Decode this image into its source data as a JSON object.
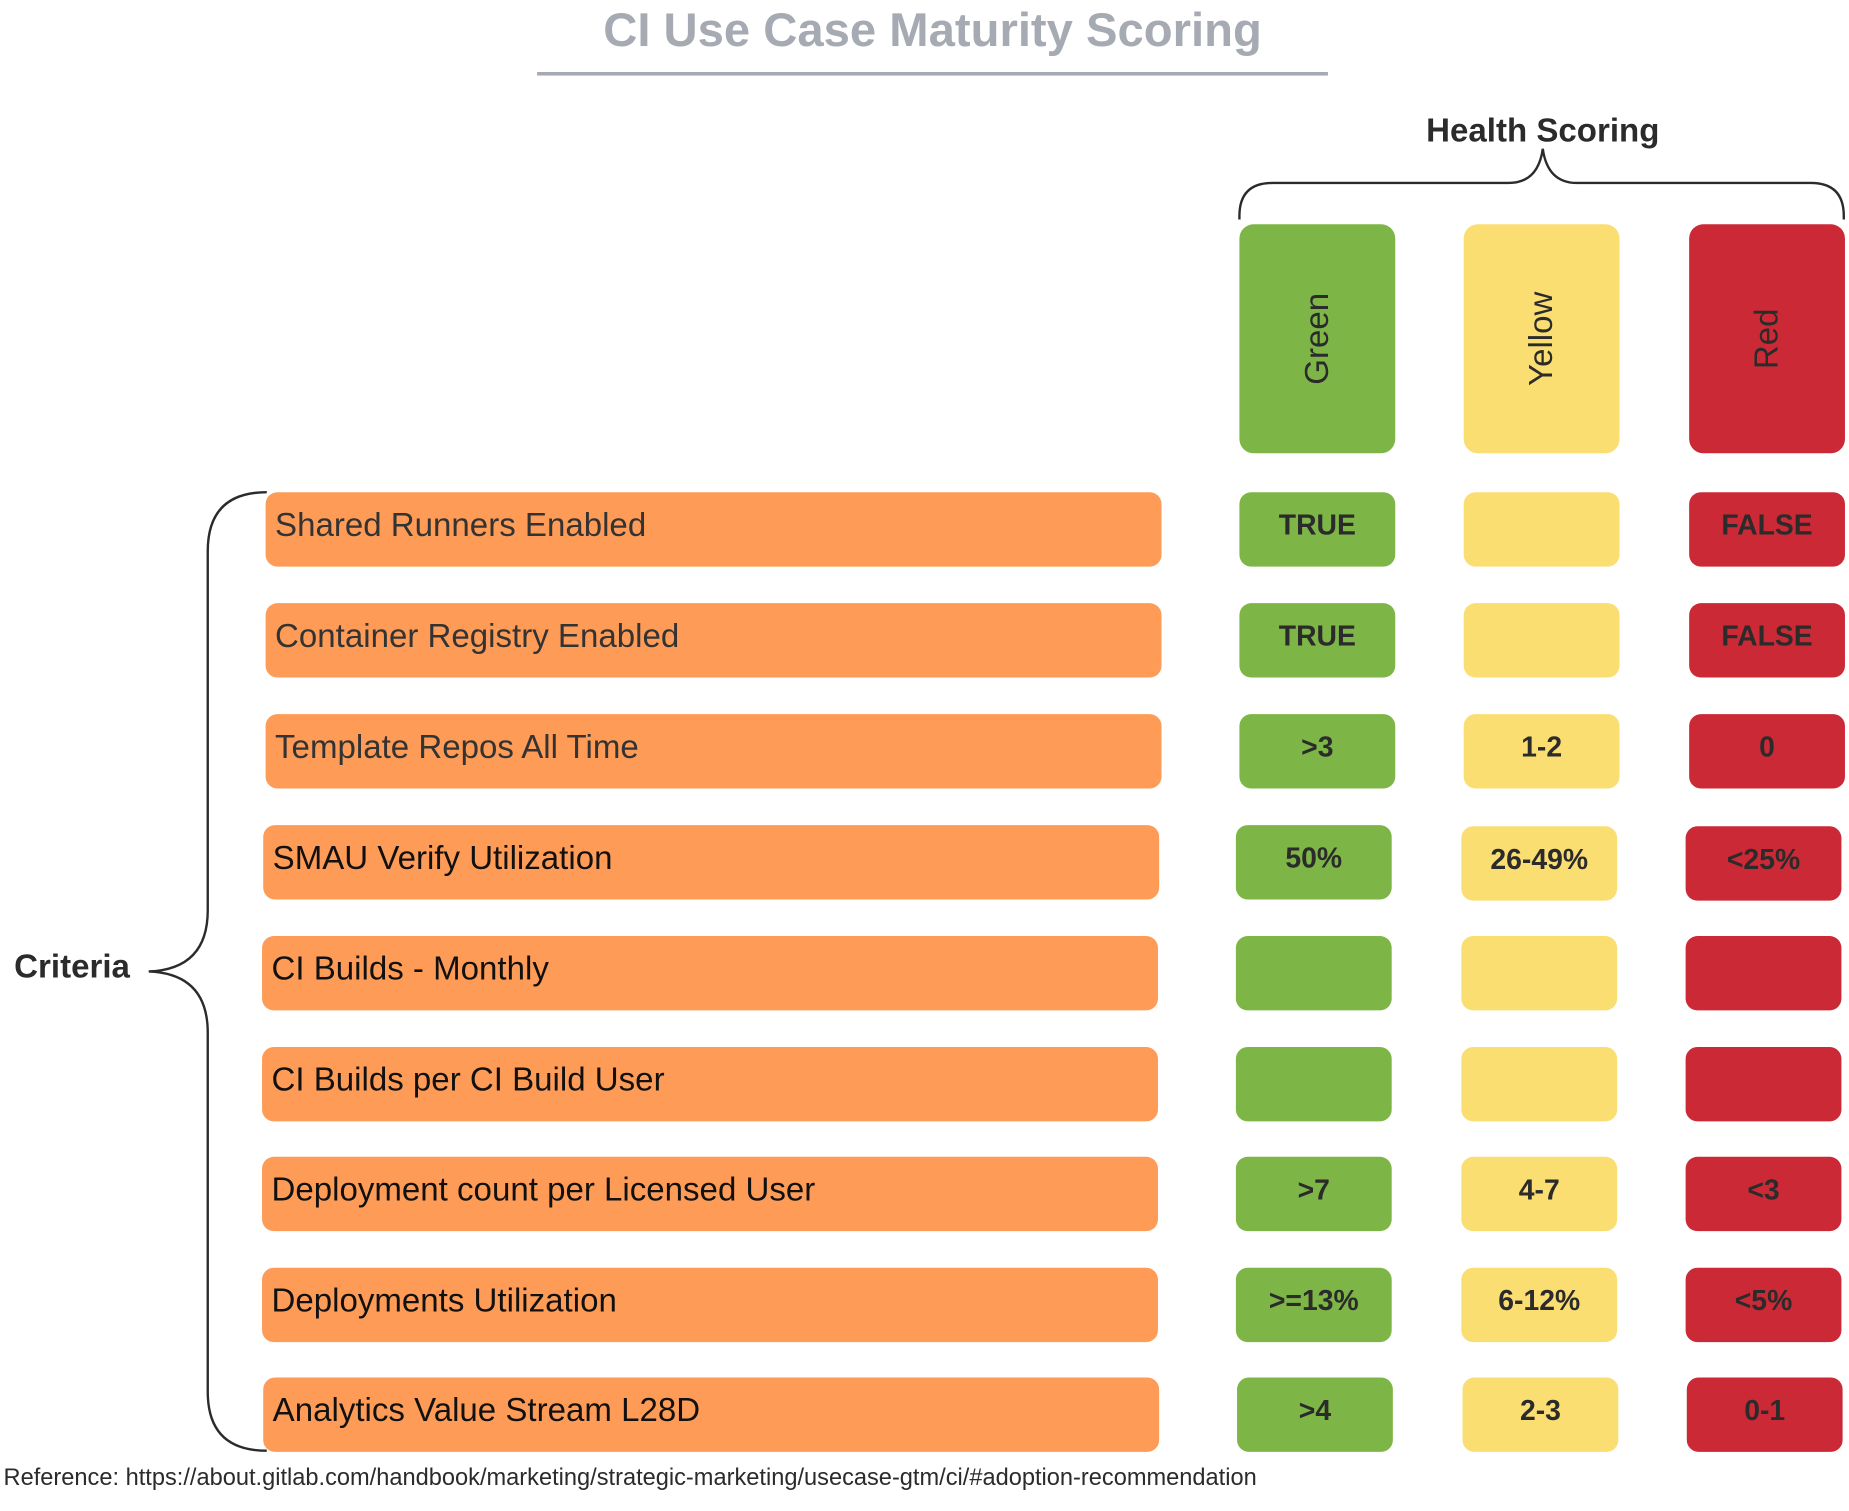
{
  "title": "CI Use Case Maturity Scoring",
  "health_scoring_label": "Health Scoring",
  "criteria_label": "Criteria",
  "columns": [
    {
      "label": "Green",
      "color": "#7db646"
    },
    {
      "label": "Yellow",
      "color": "#fbde72"
    },
    {
      "label": "Red",
      "color": "#cc2936"
    }
  ],
  "criteria_color": "#fe9c57",
  "rows": [
    {
      "criterion": "Shared Runners Enabled",
      "green": "TRUE",
      "yellow": "",
      "red": "FALSE"
    },
    {
      "criterion": "Container Registry Enabled",
      "green": "TRUE",
      "yellow": "",
      "red": "FALSE"
    },
    {
      "criterion": "Template Repos All Time",
      "green": ">3",
      "yellow": "1-2",
      "red": "0"
    },
    {
      "criterion": "SMAU Verify Utilization",
      "green": "50%",
      "yellow": "26-49%",
      "red": "<25%"
    },
    {
      "criterion": "CI Builds - Monthly",
      "green": "",
      "yellow": "",
      "red": ""
    },
    {
      "criterion": "CI Builds per CI Build User",
      "green": "",
      "yellow": "",
      "red": ""
    },
    {
      "criterion": "Deployment count per Licensed User",
      "green": ">7",
      "yellow": "4-7",
      "red": "<3"
    },
    {
      "criterion": "Deployments Utilization",
      "green": ">=13%",
      "yellow": "6-12%",
      "red": "<5%"
    },
    {
      "criterion": "Analytics Value Stream L28D",
      "green": ">4",
      "yellow": "2-3",
      "red": "0-1"
    }
  ],
  "reference": "Reference: https://about.gitlab.com/handbook/marketing/strategic-marketing/usecase-gtm/ci/#adoption-recommendation"
}
